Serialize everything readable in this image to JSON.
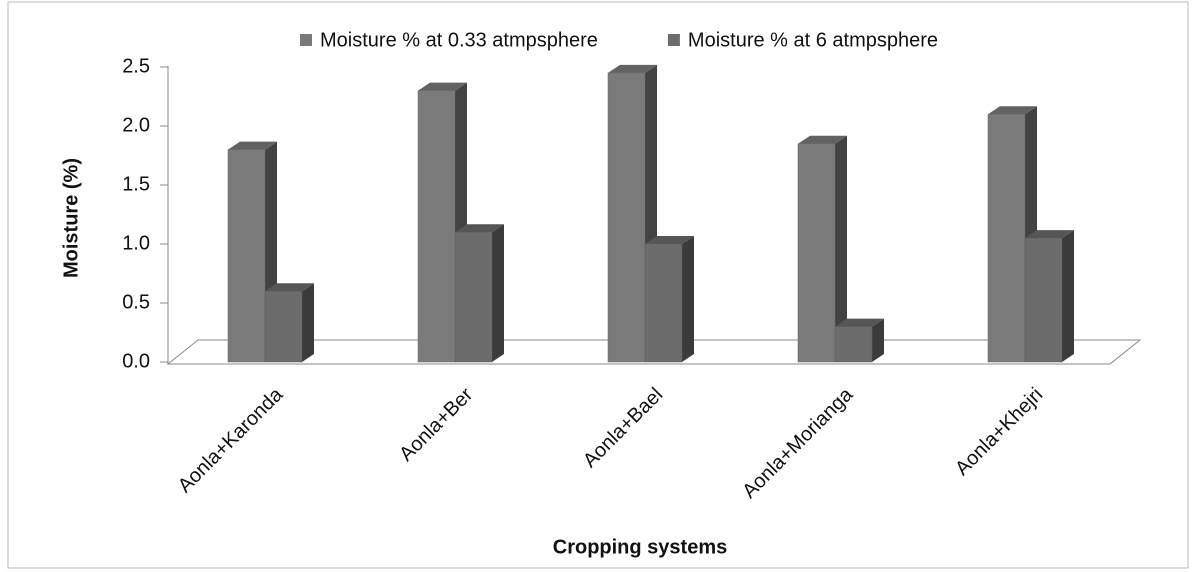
{
  "chart_data": {
    "type": "bar3d",
    "x_label": "Cropping systems",
    "y_label": "Moisture (%)",
    "categories": [
      "Aonla+Karonda",
      "Aonla+Ber",
      "Aonla+Bael",
      "Aonla+Morianga",
      "Aonla+Khejri"
    ],
    "series": [
      {
        "name": "Moisture % at 0.33 atmpsphere",
        "color": "#7a7a7a",
        "values": [
          1.8,
          2.3,
          2.45,
          1.85,
          2.1
        ]
      },
      {
        "name": "Moisture % at 6 atmpsphere",
        "color": "#6c6c6c",
        "values": [
          0.6,
          1.1,
          1.0,
          0.3,
          1.05
        ]
      }
    ],
    "ylim": [
      0,
      2.5
    ],
    "yticks": [
      {
        "value": 0,
        "label": "0.0"
      },
      0.5,
      {
        "value": 1,
        "label": "1.0"
      },
      1.5,
      {
        "value": 2,
        "label": "2.0"
      },
      2.5
    ],
    "legend": "top"
  }
}
